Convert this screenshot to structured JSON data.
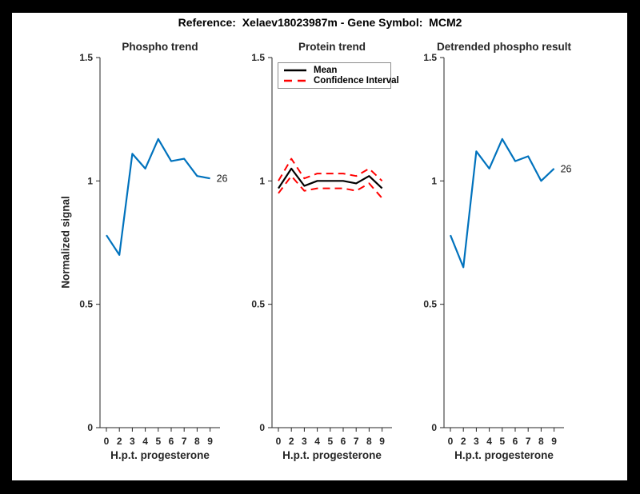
{
  "figure": {
    "title": "Reference:  Xelaev18023987m - Gene Symbol:  MCM2",
    "background_color": "#000000",
    "canvas_color": "#ffffff"
  },
  "colors": {
    "blue": "#0072BD",
    "red": "#ff0000",
    "black": "#000000",
    "axis": "#262626"
  },
  "chart_data": [
    {
      "type": "line",
      "title": "Phospho trend",
      "xlabel": "H.p.t. progesterone",
      "ylabel": "Normalized signal",
      "x_ticklabels": [
        "0",
        "2",
        "3",
        "4",
        "5",
        "6",
        "7",
        "8",
        "9"
      ],
      "y_ticks": [
        0,
        0.5,
        1,
        1.5
      ],
      "y_ticklabels": [
        "0",
        "0.5",
        "1",
        "1.5"
      ],
      "ylim": [
        0,
        1.5
      ],
      "grid": false,
      "series": [
        {
          "name": "phospho-signal",
          "color": "#0072BD",
          "style": "solid",
          "width": 2.2,
          "values": [
            0.78,
            0.7,
            1.11,
            1.05,
            1.17,
            1.08,
            1.09,
            1.02,
            1.01
          ]
        }
      ],
      "end_label": "26"
    },
    {
      "type": "line",
      "title": "Protein trend",
      "xlabel": "H.p.t. progesterone",
      "ylabel": "",
      "x_ticklabels": [
        "0",
        "2",
        "3",
        "4",
        "5",
        "6",
        "7",
        "8",
        "9"
      ],
      "y_ticks": [
        0,
        0.5,
        1,
        1.5
      ],
      "y_ticklabels": [
        "0",
        "0.5",
        "1",
        "1.5"
      ],
      "ylim": [
        0,
        1.5
      ],
      "grid": false,
      "legend_position": "northwest",
      "legend": [
        {
          "label": "Mean",
          "color": "#000000",
          "style": "solid"
        },
        {
          "label": "Confidence Interval",
          "color": "#ff0000",
          "style": "dashed"
        }
      ],
      "series": [
        {
          "name": "ci-upper",
          "color": "#ff0000",
          "style": "dashed",
          "width": 2,
          "values": [
            1.0,
            1.09,
            1.01,
            1.03,
            1.03,
            1.03,
            1.02,
            1.05,
            1.0
          ]
        },
        {
          "name": "ci-lower",
          "color": "#ff0000",
          "style": "dashed",
          "width": 2,
          "values": [
            0.95,
            1.02,
            0.96,
            0.97,
            0.97,
            0.97,
            0.96,
            0.99,
            0.93
          ]
        },
        {
          "name": "mean",
          "color": "#000000",
          "style": "solid",
          "width": 2.2,
          "values": [
            0.97,
            1.05,
            0.98,
            1.0,
            1.0,
            1.0,
            0.99,
            1.02,
            0.97
          ]
        }
      ]
    },
    {
      "type": "line",
      "title": "Detrended phospho result",
      "xlabel": "H.p.t. progesterone",
      "ylabel": "",
      "x_ticklabels": [
        "0",
        "2",
        "3",
        "4",
        "5",
        "6",
        "7",
        "8",
        "9"
      ],
      "y_ticks": [
        0,
        0.5,
        1,
        1.5
      ],
      "y_ticklabels": [
        "0",
        "0.5",
        "1",
        "1.5"
      ],
      "ylim": [
        0,
        1.5
      ],
      "grid": false,
      "series": [
        {
          "name": "detrended-signal",
          "color": "#0072BD",
          "style": "solid",
          "width": 2.2,
          "values": [
            0.78,
            0.65,
            1.12,
            1.05,
            1.17,
            1.08,
            1.1,
            1.0,
            1.05
          ]
        }
      ],
      "end_label": "26"
    }
  ]
}
